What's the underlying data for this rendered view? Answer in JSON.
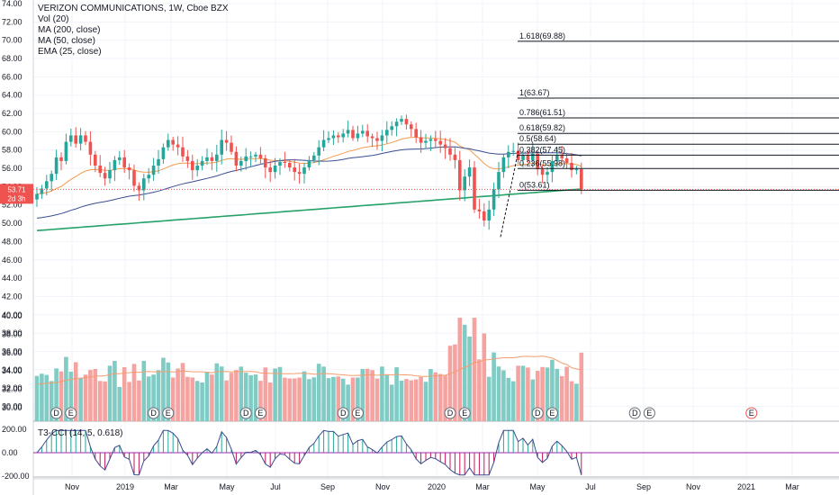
{
  "legend": {
    "title": "VERIZON COMMUNICATIONS, 1W, Cboe BZX",
    "lines": [
      "Vol (20)",
      "MA (200, close)",
      "MA (50, close)",
      "EMA (25, close)"
    ]
  },
  "cci_label": "T3-CCI (14, 5, 0.618)",
  "price_tag": {
    "value": "53.71",
    "time_left": "2d 3h"
  },
  "colors": {
    "up": "#26a69a",
    "down": "#ef5350",
    "vol_up": "#80cbc4",
    "vol_down": "#f5a3a0",
    "ma200": "#26a269",
    "ma50": "#3a4d8f",
    "ema25": "#f39c4e",
    "vol_ma": "#f59d6f",
    "fib": "#131722",
    "cci_up": "#26a69a",
    "cci_down": "#c2185b",
    "event_down": "#ef5350"
  },
  "chart_data": {
    "type": "candlestick",
    "x_ticks": [
      "Nov",
      "2019",
      "Mar",
      "May",
      "Jul",
      "Sep",
      "Nov",
      "2020",
      "Mar",
      "May",
      "Jul",
      "Sep",
      "Nov",
      "2021",
      "Mar"
    ],
    "y_ticks": [
      "74.00",
      "72.00",
      "70.00",
      "68.00",
      "66.00",
      "64.00",
      "62.00",
      "60.00",
      "58.00",
      "56.00",
      "54.00",
      "52.00",
      "50.00",
      "48.00",
      "46.00",
      "44.00",
      "42.00",
      "40.00",
      "38.00",
      "36.00",
      "34.00",
      "32.00",
      "30.00"
    ],
    "y_range": [
      28.8,
      74.4
    ],
    "closes": [
      53.2,
      53.8,
      54.6,
      55.4,
      57.2,
      56.8,
      58.9,
      59.6,
      58.7,
      59.6,
      58.9,
      57.5,
      56.3,
      55.5,
      54.9,
      55.8,
      56.9,
      57.2,
      56.1,
      55.8,
      54.1,
      53.6,
      54.9,
      55.3,
      56.3,
      57.0,
      58.3,
      59.1,
      58.6,
      58.3,
      57.3,
      56.8,
      55.8,
      56.3,
      56.8,
      57.2,
      56.8,
      57.5,
      59.1,
      58.8,
      57.8,
      56.3,
      56.8,
      57.3,
      57.3,
      57.5,
      57.1,
      56.1,
      55.6,
      56.3,
      56.7,
      56.6,
      56.1,
      55.6,
      55.4,
      56.1,
      56.9,
      57.4,
      58.3,
      59.1,
      59.3,
      59.6,
      59.4,
      59.8,
      60.2,
      59.3,
      59.8,
      60.1,
      59.5,
      59.3,
      59.0,
      59.6,
      60.2,
      60.6,
      61.1,
      61.4,
      60.8,
      60.3,
      59.4,
      58.8,
      59.0,
      59.2,
      59.0,
      58.6,
      58.2,
      57.5,
      56.9,
      53.6,
      55.1,
      56.1,
      51.5,
      51.3,
      50.3,
      51.5,
      53.7,
      55.6,
      57.2,
      57.8,
      57.9,
      56.9,
      57.4,
      56.9,
      57.6,
      55.9,
      55.3,
      55.6,
      56.8,
      57.4,
      57.1,
      56.6,
      55.8,
      55.9,
      53.71
    ],
    "fib_levels": [
      {
        "ratio": "1.618",
        "value": 69.88,
        "label": "1.618(69.88)"
      },
      {
        "ratio": "1",
        "value": 63.67,
        "label": "1(63.67)"
      },
      {
        "ratio": "0.786",
        "value": 61.51,
        "label": "0.786(61.51)"
      },
      {
        "ratio": "0.618",
        "value": 59.82,
        "label": "0.618(59.82)"
      },
      {
        "ratio": "0.5",
        "value": 58.64,
        "label": "0.5(58.64)"
      },
      {
        "ratio": "0.382",
        "value": 57.45,
        "label": "0.382(57.45)"
      },
      {
        "ratio": "0.236",
        "value": 55.98,
        "label": "0.236(55.98)"
      },
      {
        "ratio": "0",
        "value": 53.61,
        "label": "0(53.61)"
      }
    ],
    "volume_ticks": [
      "40.00",
      "38.00",
      "36.00",
      "34.00",
      "32.00",
      "30.00"
    ],
    "cci_ticks": [
      "200.00",
      "0.00",
      "-200.00"
    ],
    "event_markers": [
      {
        "label": "D",
        "bar": 4
      },
      {
        "label": "E",
        "bar": 7
      },
      {
        "label": "D",
        "bar": 24
      },
      {
        "label": "E",
        "bar": 27
      },
      {
        "label": "D",
        "bar": 43
      },
      {
        "label": "E",
        "bar": 46
      },
      {
        "label": "D",
        "bar": 63
      },
      {
        "label": "E",
        "bar": 66
      },
      {
        "label": "D",
        "bar": 85
      },
      {
        "label": "E",
        "bar": 88
      },
      {
        "label": "D",
        "bar": 103
      },
      {
        "label": "E",
        "bar": 106
      },
      {
        "label": "D",
        "bar": 123
      },
      {
        "label": "E",
        "bar": 126
      },
      {
        "label": "E",
        "bar": 147,
        "future": true
      }
    ]
  }
}
